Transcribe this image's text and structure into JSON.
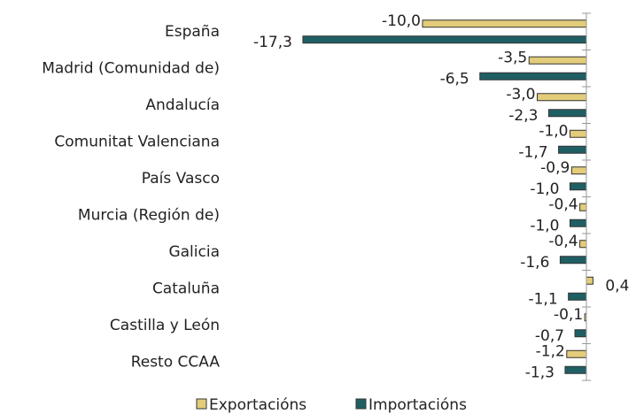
{
  "chart_data": {
    "type": "barh",
    "categories": [
      "España",
      "Madrid (Comunidad de)",
      "Andalucía",
      "Comunitat Valenciana",
      "País Vasco",
      "Murcia (Región de)",
      "Galicia",
      "Cataluña",
      "Castilla y León",
      "Resto CCAA"
    ],
    "series": [
      {
        "name": "Exportacións",
        "color": "#e3cc7a",
        "values": [
          -10.0,
          -3.5,
          -3.0,
          -1.0,
          -0.9,
          -0.4,
          -0.4,
          0.4,
          -0.1,
          -1.2
        ],
        "value_labels": [
          "-10,0",
          "-3,5",
          "-3,0",
          "-1,0",
          "-0,9",
          "-0,4",
          "-0,4",
          "0,4",
          "-0,1",
          "-1,2"
        ]
      },
      {
        "name": "Importacións",
        "color": "#1f5f64",
        "values": [
          -17.3,
          -6.5,
          -2.3,
          -1.7,
          -1.0,
          -1.0,
          -1.6,
          -1.1,
          -0.7,
          -1.3
        ],
        "value_labels": [
          "-17,3",
          "-6,5",
          "-2,3",
          "-1,7",
          "-1,0",
          "-1,0",
          "-1,6",
          "-1,1",
          "-0,7",
          "-1,3"
        ]
      }
    ],
    "xlim": [
      -18,
      2
    ],
    "legend": "bottom"
  }
}
